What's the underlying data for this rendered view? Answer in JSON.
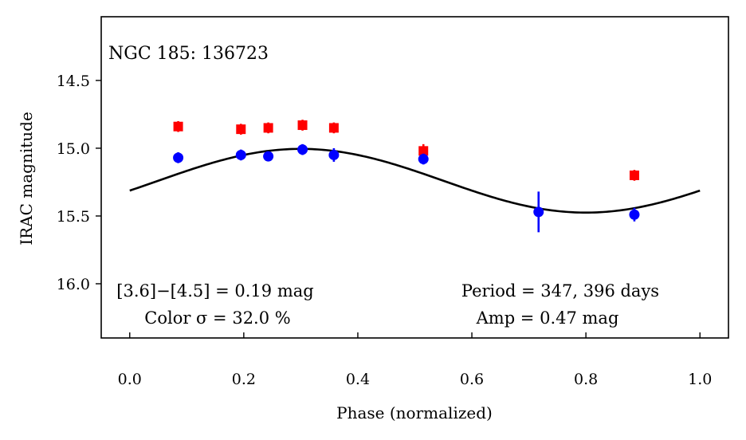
{
  "chart_data": {
    "type": "scatter",
    "title": "NGC 185:  136723",
    "xlabel": "Phase (normalized)",
    "ylabel": "IRAC magnitude",
    "xlim": [
      -0.05,
      1.05
    ],
    "ylim": [
      16.4,
      14.03
    ],
    "x_ticks": [
      0.0,
      0.2,
      0.4,
      0.6,
      0.8,
      1.0
    ],
    "x_tick_labels": [
      "0.0",
      "0.2",
      "0.4",
      "0.6",
      "0.8",
      "1.0"
    ],
    "y_ticks": [
      14.5,
      15.0,
      15.5,
      16.0
    ],
    "y_tick_labels": [
      "14.5",
      "15.0",
      "15.5",
      "16.0"
    ],
    "series": [
      {
        "name": "[3.6]",
        "color": "#ff0000",
        "marker": "square",
        "x": [
          0.085,
          0.195,
          0.243,
          0.303,
          0.358,
          0.515,
          0.885
        ],
        "y": [
          14.84,
          14.86,
          14.85,
          14.83,
          14.85,
          15.02,
          15.2
        ],
        "yerr": [
          0.04,
          0.04,
          0.04,
          0.04,
          0.04,
          0.05,
          0.04
        ]
      },
      {
        "name": "[4.5]",
        "color": "#0000ff",
        "marker": "circle",
        "x": [
          0.085,
          0.195,
          0.243,
          0.303,
          0.358,
          0.515,
          0.717,
          0.885
        ],
        "y": [
          15.07,
          15.05,
          15.06,
          15.01,
          15.05,
          15.08,
          15.47,
          15.49
        ],
        "yerr": [
          0.04,
          0.04,
          0.03,
          0.04,
          0.05,
          0.04,
          0.15,
          0.05
        ]
      }
    ],
    "fit": {
      "name": "sinusoid fit",
      "color": "#000000",
      "mean": 15.24,
      "amplitude": 0.235,
      "peak_phase": 0.3
    },
    "annotations": {
      "color_line": "[3.6]−[4.5] = 0.19 mag",
      "color_sigma": "Color σ = 32.0 %",
      "period": "Period = 347, 396 days",
      "amp": "Amp = 0.47 mag"
    }
  }
}
